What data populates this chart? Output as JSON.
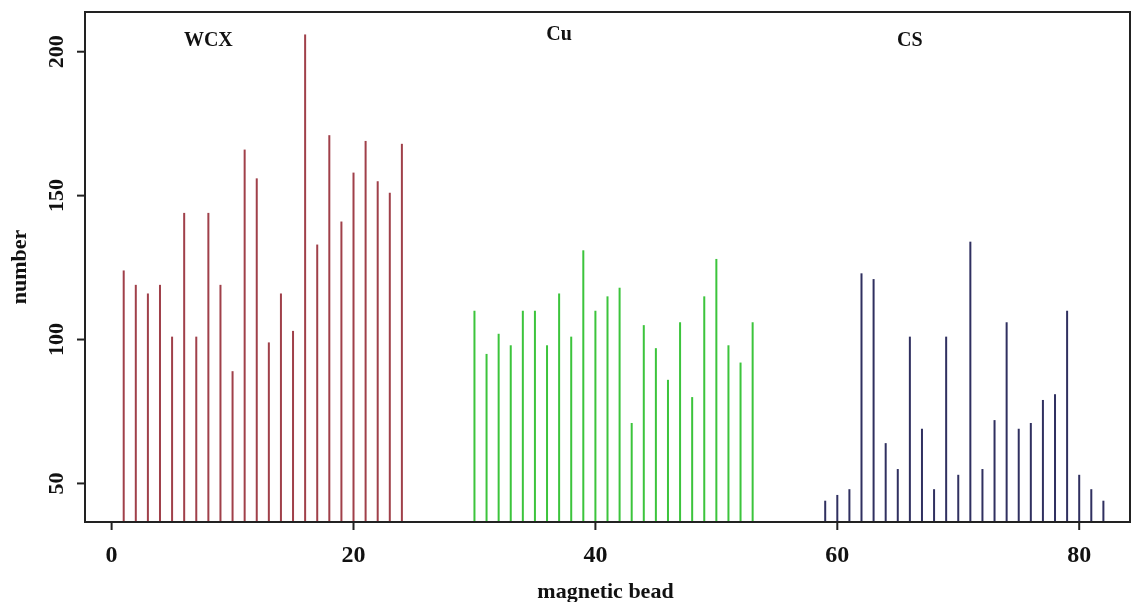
{
  "chart_data": {
    "type": "bar",
    "xlabel": "magnetic bead",
    "ylabel": "number",
    "xlim": [
      -2.2,
      84.2
    ],
    "ylim": [
      36.6,
      213.8
    ],
    "xticks": [
      0,
      20,
      40,
      60,
      80
    ],
    "yticks": [
      50,
      100,
      150,
      200
    ],
    "grid": false,
    "annotations": [
      "WCX",
      "Cu",
      "CS"
    ],
    "series": [
      {
        "color": "#a0404a",
        "x": [
          1,
          2,
          3,
          4,
          5,
          6,
          7,
          8,
          9,
          10,
          11,
          12,
          13,
          14,
          15,
          16,
          17,
          18,
          19,
          20,
          21,
          22,
          23,
          24
        ],
        "values": [
          124,
          119,
          116,
          119,
          101,
          144,
          101,
          144,
          119,
          89,
          166,
          156,
          99,
          116,
          103,
          206,
          133,
          171,
          141,
          158,
          169,
          155,
          151,
          168
        ]
      },
      {
        "color": "#3cc43c",
        "x": [
          30,
          31,
          32,
          33,
          34,
          35,
          36,
          37,
          38,
          39,
          40,
          41,
          42,
          43,
          44,
          45,
          46,
          47,
          48,
          49,
          50,
          51,
          52,
          53
        ],
        "values": [
          110,
          95,
          102,
          98,
          110,
          110,
          98,
          116,
          101,
          131,
          110,
          115,
          118,
          71,
          105,
          97,
          86,
          106,
          80,
          115,
          128,
          98,
          92,
          106
        ]
      },
      {
        "color": "#303060",
        "x": [
          59,
          60,
          61,
          62,
          63,
          64,
          65,
          66,
          67,
          68,
          69,
          70,
          71,
          72,
          73,
          74,
          75,
          76,
          77,
          78,
          79,
          80,
          81,
          82
        ],
        "values": [
          44,
          46,
          48,
          123,
          121,
          64,
          55,
          101,
          69,
          48,
          101,
          53,
          134,
          55,
          72,
          106,
          69,
          71,
          79,
          81,
          110,
          53,
          48,
          44
        ]
      }
    ]
  }
}
